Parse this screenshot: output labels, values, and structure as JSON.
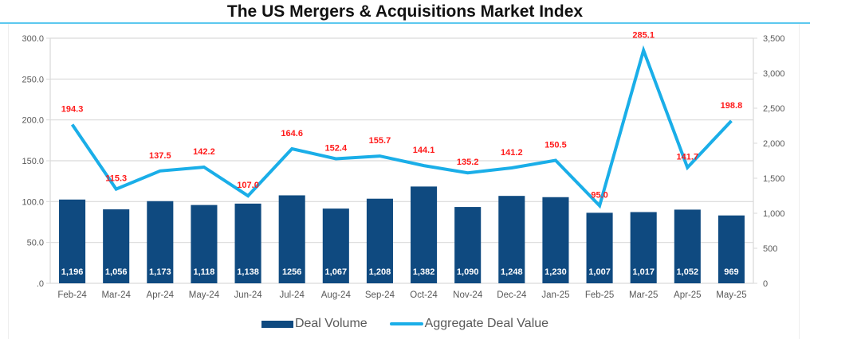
{
  "chart_data": {
    "type": "bar+line",
    "title": "The US Mergers & Acquisitions Market Index",
    "categories": [
      "Feb-24",
      "Mar-24",
      "Apr-24",
      "May-24",
      "Jun-24",
      "Jul-24",
      "Aug-24",
      "Sep-24",
      "Oct-24",
      "Nov-24",
      "Dec-24",
      "Jan-25",
      "Feb-25",
      "Mar-25",
      "Apr-25",
      "May-25"
    ],
    "series": [
      {
        "name": "Deal Volume",
        "type": "bar",
        "axis": "right",
        "color": "#0f4a80",
        "values": [
          1196,
          1056,
          1173,
          1118,
          1138,
          1256,
          1067,
          1208,
          1382,
          1090,
          1248,
          1230,
          1007,
          1017,
          1052,
          969
        ],
        "labels": [
          "1,196",
          "1,056",
          "1,173",
          "1,118",
          "1,138",
          "1256",
          "1,067",
          "1,208",
          "1,382",
          "1,090",
          "1,248",
          "1,230",
          "1,007",
          "1,017",
          "1,052",
          "969"
        ]
      },
      {
        "name": "Aggregate Deal Value",
        "type": "line",
        "axis": "left",
        "color": "#1aaee8",
        "values": [
          194.3,
          115.3,
          137.5,
          142.2,
          107.0,
          164.6,
          152.4,
          155.7,
          144.1,
          135.2,
          141.2,
          150.5,
          95.0,
          285.1,
          141.7,
          198.8
        ],
        "labels": [
          "194.3",
          "115.3",
          "137.5",
          "142.2",
          "107.0",
          "164.6",
          "152.4",
          "155.7",
          "144.1",
          "135.2",
          "141.2",
          "150.5",
          "95.0",
          "285.1",
          "141.7",
          "198.8"
        ],
        "label_color": "#ff1a1a"
      }
    ],
    "left_axis": {
      "ylim": [
        0,
        300
      ],
      "ticks": [
        0,
        50,
        100,
        150,
        200,
        250,
        300
      ],
      "tick_labels": [
        ".0",
        "50.0",
        "100.0",
        "150.0",
        "200.0",
        "250.0",
        "300.0"
      ]
    },
    "right_axis": {
      "ylim": [
        0,
        3500
      ],
      "ticks": [
        0,
        500,
        1000,
        1500,
        2000,
        2500,
        3000,
        3500
      ],
      "tick_labels": [
        "0",
        "500",
        "1,000",
        "1,500",
        "2,000",
        "2,500",
        "3,000",
        "3,500"
      ]
    },
    "xlabel": "",
    "ylabel": "",
    "grid": true,
    "legend": {
      "position": "bottom",
      "entries": [
        "Deal Volume",
        "Aggregate Deal Value"
      ]
    }
  }
}
